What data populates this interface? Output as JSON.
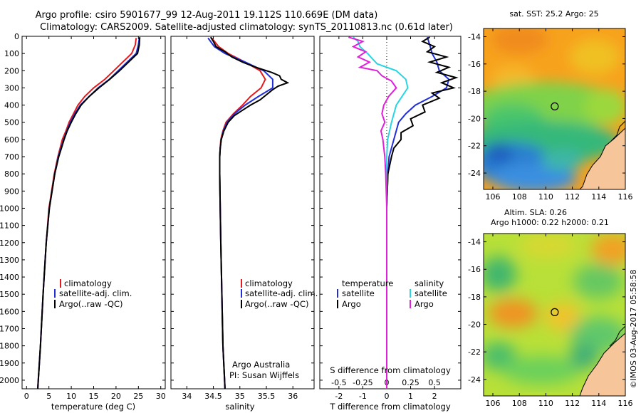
{
  "header": {
    "line1": "Argo profile: csiro 5901677_99 12-Aug-2011 19.112S 110.669E (DM data)",
    "line2": "Climatology: CARS2009. Satellite-adjusted climatology: synTS_20110813.nc (0.61d later)"
  },
  "depth_ticks": [
    "0",
    "100",
    "200",
    "300",
    "400",
    "500",
    "600",
    "700",
    "800",
    "900",
    "1000",
    "1100",
    "1200",
    "1300",
    "1400",
    "1500",
    "1600",
    "1700",
    "1800",
    "1900",
    "2000"
  ],
  "colors": {
    "climatology": "#e41a1c",
    "satellite": "#1f2ed8",
    "argo": "#000000",
    "salinity_sat": "#27d6e0",
    "salinity_argo": "#e020d8",
    "land": "#f7c59a"
  },
  "chart_data": [
    {
      "type": "line",
      "title": "",
      "xlabel": "temperature (deg C)",
      "ylabel": "depth",
      "xlim": [
        -1,
        31
      ],
      "ylim": [
        2050,
        0
      ],
      "x_ticks": [
        "0",
        "5",
        "10",
        "15",
        "20",
        "25",
        "30"
      ],
      "legend": [
        "climatology",
        "satellite-adj. clim.",
        "Argo(..raw -QC)"
      ],
      "series": [
        {
          "name": "climatology",
          "depth": [
            10,
            50,
            100,
            150,
            200,
            250,
            300,
            350,
            400,
            450,
            500,
            550,
            600,
            650,
            700,
            800,
            900,
            1000,
            1200,
            1500,
            1800,
            2050
          ],
          "values": [
            24.5,
            24.3,
            23.5,
            21.5,
            19.5,
            17.5,
            15,
            13,
            11.5,
            10.5,
            9.5,
            8.8,
            8,
            7.5,
            7,
            6.2,
            5.6,
            5,
            4.4,
            3.7,
            3.1,
            2.5
          ]
        },
        {
          "name": "satellite-adj. clim.",
          "depth": [
            10,
            50,
            100,
            150,
            200,
            250,
            300,
            350,
            400,
            450,
            500,
            550,
            600,
            650,
            700,
            800,
            900,
            1000,
            1200,
            1500,
            1800,
            2050
          ],
          "values": [
            25.2,
            25,
            24.5,
            22.5,
            20.5,
            18.5,
            16,
            14,
            12,
            10.8,
            9.8,
            9,
            8.3,
            7.7,
            7.1,
            6.3,
            5.7,
            5.1,
            4.4,
            3.7,
            3.1,
            2.5
          ]
        },
        {
          "name": "Argo",
          "depth": [
            5,
            50,
            100,
            150,
            200,
            250,
            300,
            350,
            400,
            450,
            500,
            550,
            600,
            650,
            700,
            800,
            900,
            1000,
            1200,
            1500,
            1800,
            2050
          ],
          "values": [
            25.3,
            25.2,
            24.8,
            22.8,
            20.8,
            18.6,
            16.2,
            14,
            12.2,
            11,
            10,
            9.1,
            8.4,
            7.8,
            7.2,
            6.3,
            5.7,
            5.1,
            4.4,
            3.7,
            3.1,
            2.5
          ]
        }
      ]
    },
    {
      "type": "line",
      "title": "",
      "xlabel": "salinity",
      "ylabel": "depth",
      "xlim": [
        33.7,
        36.4
      ],
      "ylim": [
        2050,
        0
      ],
      "x_ticks": [
        "34",
        "34.5",
        "35",
        "35.5",
        "36"
      ],
      "legend": [
        "climatology",
        "satellite-adj. clim.",
        "Argo(..raw -QC)"
      ],
      "annotation": [
        "Argo Australia",
        "PI: Susan Wijffels"
      ],
      "series": [
        {
          "name": "climatology",
          "depth": [
            10,
            60,
            100,
            150,
            200,
            250,
            300,
            350,
            400,
            450,
            500,
            550,
            600,
            650,
            700,
            800,
            1000,
            1200,
            1500,
            1800,
            2050
          ],
          "values": [
            34.47,
            34.6,
            34.78,
            35.1,
            35.38,
            35.48,
            35.4,
            35.2,
            35.05,
            34.88,
            34.74,
            34.68,
            34.64,
            34.63,
            34.62,
            34.62,
            34.63,
            34.64,
            34.66,
            34.68,
            34.72
          ]
        },
        {
          "name": "satellite-adj. clim.",
          "depth": [
            10,
            60,
            100,
            150,
            200,
            250,
            300,
            350,
            400,
            450,
            500,
            550,
            600,
            650,
            700,
            800,
            1000,
            1200,
            1500,
            1800,
            2050
          ],
          "values": [
            34.4,
            34.52,
            34.72,
            35.1,
            35.45,
            35.62,
            35.62,
            35.35,
            35.1,
            34.9,
            34.76,
            34.69,
            34.65,
            34.63,
            34.62,
            34.62,
            34.63,
            34.64,
            34.66,
            34.68,
            34.72
          ]
        },
        {
          "name": "Argo",
          "depth": [
            5,
            30,
            60,
            90,
            120,
            150,
            180,
            210,
            230,
            250,
            270,
            290,
            310,
            340,
            370,
            400,
            430,
            460,
            500,
            550,
            600,
            650,
            700,
            800,
            1000,
            1200,
            1500,
            1800,
            2050
          ],
          "values": [
            34.45,
            34.5,
            34.55,
            34.72,
            34.85,
            35.05,
            35.3,
            35.6,
            35.75,
            35.78,
            35.9,
            35.72,
            35.62,
            35.5,
            35.38,
            35.2,
            35.05,
            34.9,
            34.78,
            34.7,
            34.65,
            34.63,
            34.62,
            34.62,
            34.63,
            34.64,
            34.66,
            34.68,
            34.72
          ]
        }
      ]
    },
    {
      "type": "line",
      "title": "",
      "xlabel_top": "S difference from climatology",
      "xlabel": "T difference from climatology",
      "ylabel": "depth",
      "xlim": [
        -2.8,
        3.1
      ],
      "ylim": [
        2050,
        0
      ],
      "x_ticks": [
        "-2",
        "-1",
        "0",
        "1",
        "2"
      ],
      "x_ticks_salinity": [
        "-0.5",
        "-0.25",
        "0",
        "0.25",
        "0.5"
      ],
      "legend_headers": [
        "temperature",
        "salinity"
      ],
      "legend": [
        "satellite",
        "Argo",
        "satellite",
        "Argo"
      ],
      "series": [
        {
          "name": "temperature satellite",
          "depth": [
            5,
            50,
            100,
            150,
            200,
            250,
            300,
            350,
            400,
            450,
            500,
            600,
            700,
            800,
            1000,
            1500,
            2050
          ],
          "values": [
            1.7,
            1.8,
            1.9,
            2.1,
            2.2,
            2.6,
            2.5,
            1.9,
            1.2,
            0.8,
            0.5,
            0.3,
            0.1,
            0.05,
            0,
            0,
            0
          ]
        },
        {
          "name": "temperature Argo",
          "depth": [
            5,
            30,
            60,
            90,
            120,
            150,
            180,
            210,
            240,
            270,
            300,
            330,
            360,
            400,
            440,
            480,
            520,
            560,
            600,
            650,
            700,
            800,
            1000,
            1500,
            2050
          ],
          "values": [
            1.8,
            1.5,
            2.0,
            1.7,
            2.5,
            1.8,
            2.6,
            2.1,
            2.9,
            2.3,
            2.8,
            1.9,
            2.2,
            1.5,
            1.6,
            1.0,
            1.1,
            0.6,
            0.6,
            0.3,
            0.2,
            0.05,
            0,
            0,
            0
          ]
        },
        {
          "name": "salinity satellite",
          "depth": [
            5,
            30,
            60,
            100,
            130,
            160,
            200,
            250,
            300,
            400,
            500,
            600,
            700,
            800,
            1000,
            1500,
            2050
          ],
          "values": [
            -0.35,
            -0.3,
            -0.28,
            -0.2,
            -0.15,
            -0.1,
            0.1,
            0.2,
            0.22,
            0.1,
            0.05,
            0.01,
            0,
            0,
            0,
            0,
            0
          ]
        },
        {
          "name": "salinity Argo",
          "depth": [
            5,
            30,
            60,
            90,
            120,
            150,
            180,
            200,
            230,
            260,
            300,
            350,
            400,
            450,
            500,
            550,
            600,
            650,
            700,
            800,
            1000,
            1500,
            2050
          ],
          "values": [
            -0.4,
            -0.25,
            -0.35,
            -0.22,
            -0.3,
            -0.18,
            -0.28,
            -0.1,
            -0.05,
            0.05,
            0.1,
            0.02,
            -0.03,
            -0.05,
            -0.02,
            -0.06,
            -0.04,
            -0.03,
            -0.02,
            -0.01,
            0,
            0,
            0
          ]
        }
      ]
    },
    {
      "type": "heatmap",
      "title": "sat. SST: 25.2  Argo: 25",
      "xlim": [
        105.3,
        116
      ],
      "ylim": [
        -25.2,
        -13.4
      ],
      "x_ticks": [
        "106",
        "108",
        "110",
        "112",
        "114",
        "116"
      ],
      "y_ticks": [
        "-14",
        "-16",
        "-18",
        "-20",
        "-22",
        "-24"
      ],
      "marker": {
        "lon": 110.669,
        "lat": -19.112
      }
    },
    {
      "type": "heatmap",
      "title": "Altim. SLA: 0.26",
      "subtitle": "Argo h1000: 0.22 h2000: 0.21",
      "xlim": [
        105.3,
        116
      ],
      "ylim": [
        -25.2,
        -13.4
      ],
      "x_ticks": [
        "106",
        "108",
        "110",
        "112",
        "114",
        "116"
      ],
      "y_ticks": [
        "-14",
        "-16",
        "-18",
        "-20",
        "-22",
        "-24"
      ],
      "marker": {
        "lon": 110.669,
        "lat": -19.112
      }
    }
  ],
  "footer": {
    "credit": "©IMOS 03-Aug-2017 05:58:58"
  }
}
